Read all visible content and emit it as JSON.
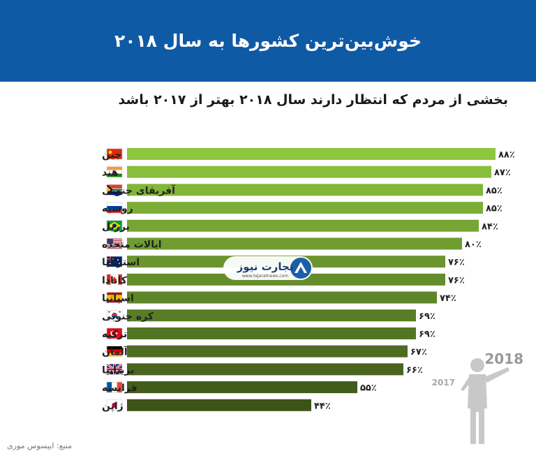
{
  "header": {
    "title": "خوش‌بین‌ترین کشورها به سال ۲۰۱۸",
    "bg": "#0f5aa5"
  },
  "subtitle": "بخشی از مردم که انتظار دارند سال ۲۰۱۸ بهتر از ۲۰۱۷ باشد",
  "source": "منبع: ایپسوس موری",
  "logo": {
    "name": "تجارت نیوز",
    "url_text": "www.tejaratnews.com"
  },
  "illustration": {
    "year_new": "2018",
    "year_old": "2017"
  },
  "chart_data": {
    "type": "bar",
    "orientation": "horizontal",
    "categories": [
      "چین",
      "هند",
      "آفریقای جنوبی",
      "روسیه",
      "برزیل",
      "ایالات متحده",
      "استرالیا",
      "کانادا",
      "اسپانیا",
      "کره جنوبی",
      "ترکیه",
      "آلمان",
      "بریتانیا",
      "فرانسه",
      "ژاپن"
    ],
    "values": [
      88,
      87,
      85,
      85,
      84,
      80,
      76,
      76,
      74,
      69,
      69,
      67,
      66,
      55,
      44
    ],
    "value_labels": [
      "۸۸٪",
      "۸۷٪",
      "۸۵٪",
      "۸۵٪",
      "۸۴٪",
      "۸۰٪",
      "۷۶٪",
      "۷۶٪",
      "۷۴٪",
      "۶۹٪",
      "۶۹٪",
      "۶۷٪",
      "۶۶٪",
      "۵۵٪",
      "۴۴٪"
    ],
    "flags": [
      "china-flag-icon",
      "india-flag-icon",
      "south-africa-flag-icon",
      "russia-flag-icon",
      "brazil-flag-icon",
      "usa-flag-icon",
      "australia-flag-icon",
      "canada-flag-icon",
      "spain-flag-icon",
      "south-korea-flag-icon",
      "turkey-flag-icon",
      "germany-flag-icon",
      "uk-flag-icon",
      "france-flag-icon",
      "japan-flag-icon"
    ],
    "colors": {
      "light": "#8dc63f",
      "dark": "#3c5418"
    },
    "xlim": [
      0,
      100
    ],
    "grid": false,
    "legend": "none"
  }
}
